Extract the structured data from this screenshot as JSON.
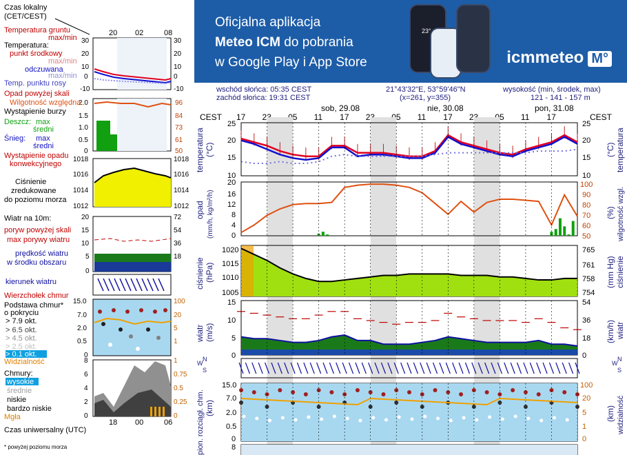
{
  "banner": {
    "line1": "Oficjalna aplikacja",
    "line2_bold": "Meteo ICM",
    "line2_rest": " do pobrania",
    "line3": "w Google Play i App Store",
    "logo_text": "icmmeteo",
    "logo_box": "M°",
    "phone_temp": "23°"
  },
  "legend": {
    "time_local_title": "Czas lokalny",
    "time_local_sub": "(CET/CEST)",
    "time_local_ticks": [
      "20",
      "02",
      "08"
    ],
    "ground_temp": "Temperatura gruntu",
    "ground_temp_sub": "max/min",
    "temperature": "Temperatura:",
    "midpoint": "punkt środkowy",
    "max_min": "max/min",
    "feels_like": "odczuwana",
    "max_min2": "max/min",
    "dew_point": "Temp. punktu rosy",
    "temp_ticks": [
      "30",
      "20",
      "10",
      "0",
      "-10"
    ],
    "precip_above": "Opad powyżej skali",
    "humidity": "Wilgotność względna",
    "storm": "Wystąpienie burzy",
    "rain": "Deszcz:",
    "rain_max": "max",
    "rain_avg": "średni",
    "snow": "Śnieg:",
    "snow_max": "max",
    "snow_avg": "średni",
    "precip_occurrence": "Wystąpienie opadu",
    "precip_occurrence2": "konwekcyjnego",
    "precip_ticks": [
      "2.0",
      "1.5",
      "1.0",
      "0.5",
      "0"
    ],
    "humidity_ticks": [
      "96",
      "84",
      "73",
      "61",
      "50"
    ],
    "pressure": "Ciśnienie",
    "pressure2": "zredukowane",
    "pressure3": "do poziomu morza",
    "pressure_ticks": [
      "1018",
      "1016",
      "1014",
      "1012"
    ],
    "wind_10m": "Wiatr na 10m:",
    "gust_above": "poryw powyżej skali",
    "max_gusts": "max porywy wiatru",
    "wind_speed": "prędkość wiatru",
    "wind_speed2": "w środku obszaru",
    "wind_ticks_ms": [
      "20",
      "15",
      "10",
      "5",
      "0"
    ],
    "wind_ticks_kmh": [
      "72",
      "54",
      "36",
      "18"
    ],
    "wind_direction": "kierunek wiatru",
    "cloud_top": "Wierzchołek chmur",
    "cloud_base": "Podstawa chmur*",
    "cloud_base2": "o pokryciu",
    "okt1": "> 7.9 okt.",
    "okt2": "> 6.5 okt.",
    "okt3": "> 4.5 okt.",
    "okt4": "> 2.5 okt.",
    "okt5": "> 0.1 okt.",
    "cloud_ticks": [
      "15.0",
      "7.0",
      "2.0",
      "0.5",
      "0"
    ],
    "vis_ticks": [
      "100",
      "20",
      "5",
      "1"
    ],
    "visibility": "Widzialność",
    "clouds": "Chmury:",
    "high": "wysokie",
    "middle": "średnie",
    "low": "niskie",
    "very_low": "bardzo niskie",
    "fog": "Mgła",
    "clouds_ticks": [
      "8",
      "6",
      "4",
      "2",
      "0"
    ],
    "clouds_ticks_r": [
      "1",
      "0.75",
      "0.5",
      "0.25",
      "0"
    ],
    "utc_ticks": [
      "18",
      "00",
      "06"
    ],
    "utc": "Czas uniwersalny (UTC)",
    "footnote": "* powyżej poziomu morza"
  },
  "header": {
    "sunrise": "wschód słońca: 05:35 CEST",
    "sunset": "zachód słońca: 19:31 CEST",
    "coords": "21°43'32\"E, 53°59'46\"N",
    "grid": "(x=261,  y=355)",
    "elevation_label": "wysokość (min, środek, max)",
    "elevation": "121 - 141 - 157 m",
    "tz": "CEST",
    "days": [
      "sob, 29.08",
      "nie, 30.08",
      "pon, 31.08"
    ],
    "hour_ticks": [
      "17",
      "23",
      "05",
      "11",
      "17",
      "23",
      "05",
      "11",
      "17",
      "23",
      "05",
      "11",
      "17"
    ]
  },
  "panels": {
    "temp_left": "temperatura",
    "temp_left_unit": "(°C)",
    "temp_right": "temperatura",
    "temp_right_unit": "(°C)",
    "temp_ticks": [
      "25",
      "20",
      "15",
      "10"
    ],
    "precip_left": "opad",
    "precip_left_unit": "(mm/h, kg/m²/h)",
    "precip_right": "wilgotność wzgl.",
    "precip_right_unit": "(%)",
    "precip_ticks": [
      "20",
      "16",
      "12",
      "8",
      "4",
      "0"
    ],
    "humidity_ticks": [
      "100",
      "90",
      "80",
      "70",
      "60",
      "50"
    ],
    "pressure_left": "ciśnienie",
    "pressure_left_unit": "(hPa)",
    "pressure_right": "ciśnienie",
    "pressure_right_unit": "(mm Hg)",
    "pressure_ticks": [
      "1020",
      "1015",
      "1010",
      "1005"
    ],
    "pressure_ticks_mmhg": [
      "765",
      "761",
      "758",
      "754"
    ],
    "wind_left": "wiatr",
    "wind_left_unit": "(m/s)",
    "wind_right": "wiatr",
    "wind_right_unit": "(km/h)",
    "wind_ticks": [
      "15",
      "10",
      "5",
      "0"
    ],
    "wind_ticks_kmh": [
      "54",
      "36",
      "18",
      "0"
    ],
    "cloud_left": "pion. rozciągł. chm.",
    "cloud_left_unit": "(km)",
    "cloud_right": "widzialność",
    "cloud_right_unit": "(km)",
    "cloud_ticks": [
      "15.0",
      "7.0",
      "2.0",
      "0.5",
      "0"
    ],
    "vis_ticks": [
      "100",
      "20",
      "5",
      "1",
      "0"
    ],
    "clouds_tick_top": "8",
    "clouds_left": "e"
  },
  "colors": {
    "temp": "#e00020",
    "feels": "#1010d0",
    "dew": "#7070e0",
    "humidity": "#e05010",
    "rain": "#10a010",
    "pressure_fill": "#a0e010",
    "wind_fill": "#1a7a1a",
    "banner": "#1d5da8",
    "night_shade": "#e0e0e0",
    "sky": "#a8d8f0"
  },
  "chart_data": [
    {
      "type": "line",
      "panel": "temperature",
      "x_unit": "hours from Fri 28.08 17:00 CEST",
      "x": [
        0,
        3,
        6,
        9,
        12,
        15,
        18,
        21,
        24,
        27,
        30,
        33,
        36,
        39,
        42,
        45,
        48,
        51,
        54,
        57,
        60,
        63,
        66,
        69,
        72,
        75,
        78
      ],
      "series": [
        {
          "values": [
            20.5,
            19.5,
            18.5,
            17.0,
            16.0,
            15.5,
            15.5,
            18.5,
            18.5,
            16.5,
            16.5,
            16.5,
            16.0,
            15.5,
            15.5,
            17.0,
            21.5,
            19.5,
            18.5,
            17.5,
            16.5,
            16.0,
            17.5,
            18.5,
            19.5,
            21.5,
            19.5
          ]
        },
        {
          "values": [
            20.0,
            19.0,
            17.5,
            16.0,
            15.0,
            14.5,
            15.0,
            18.0,
            18.0,
            15.5,
            16.0,
            16.0,
            15.5,
            15.0,
            15.0,
            16.5,
            21.0,
            19.0,
            18.0,
            17.0,
            16.0,
            15.5,
            17.0,
            18.0,
            19.0,
            21.0,
            19.0
          ]
        },
        {
          "values": [
            14.0,
            13.5,
            13.5,
            14.0,
            13.5,
            13.5,
            14.0,
            15.5,
            16.0,
            15.5,
            15.5,
            15.5,
            15.5,
            15.5,
            15.5,
            16.0,
            16.5,
            16.5,
            16.5,
            16.5,
            16.5,
            16.5,
            16.5,
            17.0,
            17.0,
            17.0,
            17.5
          ]
        }
      ],
      "ylim": [
        10,
        25
      ]
    },
    {
      "type": "line",
      "panel": "humidity",
      "x": [
        0,
        3,
        6,
        9,
        12,
        15,
        18,
        21,
        24,
        27,
        30,
        33,
        36,
        39,
        42,
        45,
        48,
        51,
        54,
        57,
        60,
        63,
        66,
        69,
        72,
        75,
        78
      ],
      "values": [
        53,
        60,
        69,
        75,
        79,
        80,
        80,
        81,
        95,
        97,
        98,
        98,
        97,
        95,
        90,
        80,
        70,
        82,
        72,
        81,
        84,
        84,
        83,
        82,
        60,
        88,
        68
      ],
      "ylim": [
        50,
        100
      ]
    },
    {
      "type": "bar",
      "panel": "precipitation",
      "x": [
        18,
        19,
        20,
        72,
        73,
        74,
        75,
        76,
        77
      ],
      "values": [
        0.8,
        1.5,
        0.5,
        1.5,
        2.5,
        6.5,
        3.5,
        0.5,
        5.5
      ],
      "ylim": [
        0,
        20
      ]
    },
    {
      "type": "area",
      "panel": "pressure",
      "x": [
        0,
        3,
        6,
        9,
        12,
        15,
        18,
        21,
        24,
        27,
        30,
        33,
        36,
        39,
        42,
        45,
        48,
        51,
        54,
        57,
        60,
        63,
        66,
        69,
        72,
        75,
        78
      ],
      "values": [
        1021,
        1019,
        1017,
        1014.5,
        1012.5,
        1011,
        1010,
        1010,
        1010.5,
        1011,
        1011.5,
        1012,
        1012,
        1012.5,
        1012.5,
        1012.5,
        1012.5,
        1012,
        1012,
        1012,
        1011.5,
        1011.5,
        1011,
        1010.5,
        1010.5,
        1011,
        1011
      ],
      "ylim": [
        1005,
        1022
      ]
    },
    {
      "type": "area",
      "panel": "wind",
      "x": [
        0,
        3,
        6,
        9,
        12,
        15,
        18,
        21,
        24,
        27,
        30,
        33,
        36,
        39,
        42,
        45,
        48,
        51,
        54,
        57,
        60,
        63,
        66,
        69,
        72,
        75,
        78
      ],
      "series": [
        {
          "values": [
            5,
            4.5,
            4.5,
            4,
            3.5,
            3.5,
            4,
            5,
            5.5,
            4,
            4,
            3,
            3,
            3,
            3.5,
            4,
            5,
            4.5,
            4,
            3.5,
            3.5,
            3.5,
            3.5,
            4,
            3,
            3,
            2.5
          ]
        },
        {
          "values": [
            12,
            11.5,
            11,
            10.5,
            10,
            10,
            11,
            12,
            12,
            10,
            9.5,
            9,
            8.5,
            9,
            9,
            9.5,
            11.5,
            10.5,
            10,
            9.5,
            9.5,
            9.5,
            9,
            10,
            9,
            7.5,
            7
          ]
        }
      ],
      "ylim": [
        0,
        15
      ]
    }
  ]
}
